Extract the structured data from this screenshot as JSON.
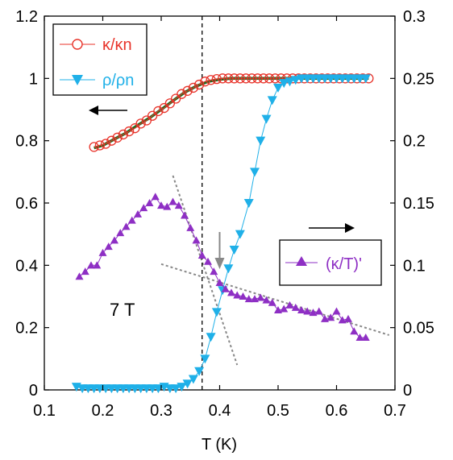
{
  "chart_data": {
    "type": "scatter",
    "xlabel": "T (K)",
    "x_ticks": [
      0.1,
      0.2,
      0.3,
      0.4,
      0.5,
      0.6,
      0.7
    ],
    "xlim": [
      0.1,
      0.7
    ],
    "ylim_left": [
      0,
      1.2
    ],
    "ylim_right": [
      0,
      0.3
    ],
    "y_ticks_left": [
      "0",
      "0.2",
      "0.4",
      "0.6",
      "0.8",
      "1",
      "1.2"
    ],
    "y_ticks_right": [
      "0",
      "0.05",
      "0.1",
      "0.15",
      "0.2",
      "0.25",
      "0.3"
    ],
    "annotation": "7 T",
    "vertical_line_x": 0.37,
    "arrow_marker_x": 0.4,
    "legend_left": {
      "placement": "top-left",
      "entries": [
        "κ/κn",
        "ρ/ρn"
      ]
    },
    "legend_right": {
      "placement": "middle-right",
      "entries": [
        "(κ/T)'"
      ]
    },
    "colors": {
      "kappa": "#e8332a",
      "fit": "#1f6b1f",
      "rho": "#1fb0e8",
      "dkappa": "#8e2fc4",
      "dashed_guides": "#888888"
    },
    "series": [
      {
        "name": "κ/κn",
        "axis": "left",
        "marker": "open-circle",
        "x": [
          0.185,
          0.195,
          0.205,
          0.215,
          0.225,
          0.235,
          0.245,
          0.255,
          0.265,
          0.275,
          0.285,
          0.295,
          0.305,
          0.315,
          0.325,
          0.335,
          0.345,
          0.355,
          0.365,
          0.375,
          0.385,
          0.395,
          0.405,
          0.415,
          0.425,
          0.435,
          0.445,
          0.455,
          0.465,
          0.475,
          0.485,
          0.495,
          0.505,
          0.515,
          0.525,
          0.535,
          0.545,
          0.555,
          0.565,
          0.575,
          0.585,
          0.595,
          0.605,
          0.615,
          0.625,
          0.635,
          0.645,
          0.655
        ],
        "y": [
          0.78,
          0.785,
          0.79,
          0.8,
          0.81,
          0.82,
          0.83,
          0.84,
          0.855,
          0.865,
          0.88,
          0.895,
          0.905,
          0.92,
          0.935,
          0.95,
          0.96,
          0.97,
          0.98,
          0.99,
          0.995,
          0.998,
          1.0,
          1.0,
          1.0,
          1.0,
          1.0,
          1.0,
          1.0,
          1.0,
          1.0,
          1.0,
          1.0,
          1.0,
          1.0,
          1.0,
          1.0,
          1.0,
          1.0,
          1.0,
          1.0,
          1.0,
          1.0,
          1.0,
          1.0,
          1.0,
          1.0,
          1.0
        ]
      },
      {
        "name": "fit",
        "axis": "left",
        "marker": "line",
        "x": [
          0.185,
          0.2,
          0.22,
          0.24,
          0.26,
          0.28,
          0.3,
          0.32,
          0.34,
          0.36,
          0.38,
          0.4,
          0.42,
          0.44,
          0.48,
          0.52,
          0.56,
          0.6,
          0.655
        ],
        "y": [
          0.777,
          0.785,
          0.805,
          0.825,
          0.85,
          0.873,
          0.9,
          0.928,
          0.955,
          0.975,
          0.99,
          0.997,
          1.0,
          1.0,
          1.0,
          1.0,
          1.0,
          1.0,
          1.0
        ]
      },
      {
        "name": "ρ/ρn",
        "axis": "left",
        "marker": "filled-triangle-down",
        "x": [
          0.155,
          0.165,
          0.175,
          0.185,
          0.195,
          0.205,
          0.215,
          0.225,
          0.235,
          0.245,
          0.255,
          0.265,
          0.275,
          0.285,
          0.295,
          0.305,
          0.315,
          0.325,
          0.335,
          0.345,
          0.355,
          0.365,
          0.375,
          0.385,
          0.395,
          0.405,
          0.415,
          0.425,
          0.435,
          0.45,
          0.46,
          0.47,
          0.48,
          0.49,
          0.5,
          0.51,
          0.52,
          0.53,
          0.54,
          0.55,
          0.56,
          0.57,
          0.58,
          0.59,
          0.6,
          0.61,
          0.62,
          0.63,
          0.64,
          0.65
        ],
        "y": [
          0.01,
          0.005,
          0.005,
          0.005,
          0.005,
          0.005,
          0.005,
          0.005,
          0.005,
          0.005,
          0.005,
          0.005,
          0.005,
          0.005,
          0.005,
          0.01,
          0.005,
          0.005,
          0.01,
          0.02,
          0.035,
          0.06,
          0.1,
          0.17,
          0.25,
          0.32,
          0.39,
          0.45,
          0.5,
          0.6,
          0.7,
          0.8,
          0.87,
          0.93,
          0.97,
          0.985,
          0.99,
          0.995,
          1.0,
          1.0,
          1.0,
          1.0,
          1.0,
          1.0,
          1.0,
          1.0,
          1.0,
          1.0,
          1.0,
          1.0
        ]
      },
      {
        "name": "(κ/T)'",
        "axis": "right",
        "marker": "filled-triangle-up",
        "x": [
          0.16,
          0.17,
          0.18,
          0.19,
          0.2,
          0.21,
          0.22,
          0.23,
          0.24,
          0.25,
          0.26,
          0.27,
          0.28,
          0.29,
          0.3,
          0.31,
          0.32,
          0.33,
          0.34,
          0.35,
          0.36,
          0.37,
          0.38,
          0.39,
          0.4,
          0.41,
          0.42,
          0.43,
          0.44,
          0.45,
          0.46,
          0.47,
          0.48,
          0.49,
          0.5,
          0.51,
          0.52,
          0.53,
          0.54,
          0.55,
          0.56,
          0.57,
          0.58,
          0.59,
          0.6,
          0.61,
          0.62,
          0.63,
          0.64,
          0.65
        ],
        "y": [
          0.091,
          0.095,
          0.1,
          0.1,
          0.11,
          0.115,
          0.12,
          0.126,
          0.131,
          0.136,
          0.141,
          0.146,
          0.15,
          0.155,
          0.148,
          0.147,
          0.151,
          0.148,
          0.14,
          0.13,
          0.12,
          0.108,
          0.103,
          0.095,
          0.086,
          0.081,
          0.078,
          0.076,
          0.075,
          0.073,
          0.073,
          0.074,
          0.072,
          0.07,
          0.064,
          0.065,
          0.068,
          0.066,
          0.064,
          0.063,
          0.062,
          0.063,
          0.057,
          0.058,
          0.063,
          0.056,
          0.057,
          0.047,
          0.042,
          0.042
        ]
      }
    ],
    "guide_lines": [
      {
        "axis": "right",
        "x": [
          0.32,
          0.43
        ],
        "y": [
          0.172,
          0.02
        ]
      },
      {
        "axis": "right",
        "x": [
          0.3,
          0.69
        ],
        "y": [
          0.101,
          0.044
        ]
      }
    ]
  }
}
